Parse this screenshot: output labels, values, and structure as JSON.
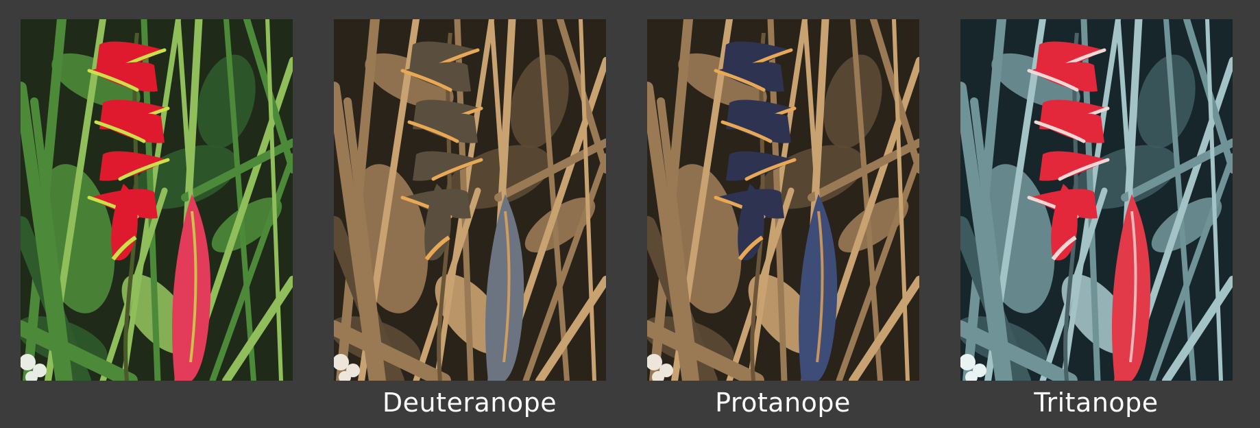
{
  "panels": [
    {
      "id": "original",
      "caption": "",
      "palette": {
        "bg_dark": "#1f2b18",
        "leaf_dark": "#2f5a2c",
        "leaf_mid": "#4c8a3a",
        "leaf_light": "#8fbe5b",
        "stem": "#4a5a2a",
        "bract": "#e01a2e",
        "bract_tip": "#cbe14a",
        "bud": "#e23c5a",
        "flower_white": "#e8ece4"
      }
    },
    {
      "id": "deuteranope",
      "caption": "Deuteranope",
      "palette": {
        "bg_dark": "#2a231a",
        "leaf_dark": "#5c4a35",
        "leaf_mid": "#9a7a55",
        "leaf_light": "#c9a271",
        "stem": "#6b5639",
        "bract": "#5a4e3e",
        "bract_tip": "#e9a854",
        "bud": "#6c7482",
        "flower_white": "#ede6da"
      }
    },
    {
      "id": "protanope",
      "caption": "Protanope",
      "palette": {
        "bg_dark": "#2a231a",
        "leaf_dark": "#5c4a35",
        "leaf_mid": "#9a7a55",
        "leaf_light": "#c9a271",
        "stem": "#6b5639",
        "bract": "#2d3350",
        "bract_tip": "#e9a854",
        "bud": "#3e4c78",
        "flower_white": "#ede6da"
      }
    },
    {
      "id": "tritanope",
      "caption": "Tritanope",
      "palette": {
        "bg_dark": "#16262a",
        "leaf_dark": "#3d5a5e",
        "leaf_mid": "#6f9397",
        "leaf_light": "#a3c3c6",
        "stem": "#4b6266",
        "bract": "#e2283a",
        "bract_tip": "#f1d8d4",
        "bud": "#e23a48",
        "flower_white": "#eaf3f4"
      }
    }
  ]
}
